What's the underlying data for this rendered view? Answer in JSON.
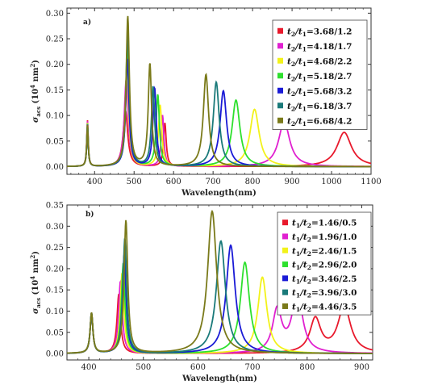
{
  "chart_data": [
    {
      "type": "line",
      "panel": "a)",
      "xlabel": "Wavelength(nm)",
      "ylabel": "σ_acs (10^4 nm^2)",
      "xlim": [
        330,
        1100
      ],
      "ylim": [
        -0.015,
        0.31
      ],
      "xticks": [
        "400",
        "500",
        "600",
        "700",
        "800",
        "900",
        "1000",
        "1100"
      ],
      "xtick_values": [
        400,
        500,
        600,
        700,
        800,
        900,
        1000,
        1100
      ],
      "yticks": [
        "0.00",
        "0.05",
        "0.10",
        "0.15",
        "0.20",
        "0.25",
        "0.30"
      ],
      "ytick_values": [
        0,
        0.05,
        0.1,
        0.15,
        0.2,
        0.25,
        0.3
      ],
      "legend_position": "top-right",
      "series": [
        {
          "name": "t2/t1=3.68/1.2",
          "label_html": [
            "t",
            "2",
            "/t",
            "1",
            "=3.68/1.2"
          ],
          "color": "#e8192c",
          "peaks": [
            [
              382,
              0.09,
              2.2
            ],
            [
              478,
              0.11,
              7
            ],
            [
              578,
              0.085,
              4
            ],
            [
              1032,
              0.067,
              22
            ]
          ]
        },
        {
          "name": "t2/t1=4.18/1.7",
          "label_html": [
            "t",
            "2",
            "/t",
            "1",
            "=4.18/1.7"
          ],
          "color": "#e020d0",
          "peaks": [
            [
              382,
              0.088,
              2.2
            ],
            [
              480,
              0.17,
              6
            ],
            [
              572,
              0.1,
              4
            ],
            [
              880,
              0.088,
              17
            ]
          ]
        },
        {
          "name": "t2/t1=4.68/2.2",
          "label_html": [
            "t",
            "2",
            "/t",
            "1",
            "=4.68/2.2"
          ],
          "color": "#f2f21a",
          "peaks": [
            [
              382,
              0.085,
              2.2
            ],
            [
              482,
              0.2,
              5
            ],
            [
              566,
              0.12,
              5
            ],
            [
              805,
              0.112,
              14
            ]
          ]
        },
        {
          "name": "t2/t1=5.18/2.7",
          "label_html": [
            "t",
            "2",
            "/t",
            "1",
            "=5.18/2.7"
          ],
          "color": "#2ee02e",
          "peaks": [
            [
              382,
              0.083,
              2.2
            ],
            [
              483,
              0.24,
              5
            ],
            [
              560,
              0.14,
              5
            ],
            [
              758,
              0.13,
              12
            ]
          ]
        },
        {
          "name": "t2/t1=5.68/3.2",
          "label_html": [
            "t",
            "2",
            "/t",
            "1",
            "=5.68/3.2"
          ],
          "color": "#1a1ad6",
          "peaks": [
            [
              382,
              0.081,
              2.2
            ],
            [
              483,
              0.21,
              5
            ],
            [
              552,
              0.153,
              5
            ],
            [
              726,
              0.148,
              10
            ]
          ]
        },
        {
          "name": "t2/t1=6.18/3.7",
          "label_html": [
            "t",
            "2",
            "/t",
            "1",
            "=6.18/3.7"
          ],
          "color": "#1a7a7a",
          "peaks": [
            [
              382,
              0.08,
              2.2
            ],
            [
              484,
              0.26,
              5
            ],
            [
              548,
              0.155,
              5
            ],
            [
              708,
              0.165,
              9
            ]
          ]
        },
        {
          "name": "t2/t1=6.68/4.2",
          "label_html": [
            "t",
            "2",
            "/t",
            "1",
            "=6.68/4.2"
          ],
          "color": "#7a7a1a",
          "peaks": [
            [
              382,
              0.08,
              2.2
            ],
            [
              484,
              0.293,
              5
            ],
            [
              540,
              0.2,
              5
            ],
            [
              682,
              0.18,
              8
            ]
          ]
        }
      ]
    },
    {
      "type": "line",
      "panel": "b)",
      "xlabel": "Wavelength(nm)",
      "ylabel": "σ_acs (10^4 nm^2)",
      "xlim": [
        360,
        920
      ],
      "ylim": [
        -0.015,
        0.35
      ],
      "xticks": [
        "400",
        "500",
        "600",
        "700",
        "800",
        "900"
      ],
      "xtick_values": [
        400,
        500,
        600,
        700,
        800,
        900
      ],
      "yticks": [
        "0.00",
        "0.05",
        "0.10",
        "0.15",
        "0.20",
        "0.25",
        "0.30",
        "0.35"
      ],
      "ytick_values": [
        0,
        0.05,
        0.1,
        0.15,
        0.2,
        0.25,
        0.3,
        0.35
      ],
      "legend_position": "top-right",
      "series": [
        {
          "name": "t1/t2=1.46/0.5",
          "label_html": [
            "t",
            "1",
            "/t",
            "2",
            "=1.46/0.5"
          ],
          "color": "#e8192c",
          "peaks": [
            [
              405,
              0.095,
              3
            ],
            [
              455,
              0.14,
              4
            ],
            [
              815,
              0.08,
              12
            ],
            [
              868,
              0.11,
              14
            ]
          ]
        },
        {
          "name": "t1/t2=1.96/1.0",
          "label_html": [
            "t",
            "1",
            "/t",
            "2",
            "=1.96/1.0"
          ],
          "color": "#e020d0",
          "peaks": [
            [
              405,
              0.095,
              3
            ],
            [
              458,
              0.17,
              4
            ],
            [
              745,
              0.1,
              10
            ],
            [
              782,
              0.145,
              11
            ]
          ]
        },
        {
          "name": "t1/t2=2.46/1.5",
          "label_html": [
            "t",
            "1",
            "/t",
            "2",
            "=2.46/1.5"
          ],
          "color": "#f2f21a",
          "peaks": [
            [
              405,
              0.095,
              3
            ],
            [
              461,
              0.19,
              4
            ],
            [
              718,
              0.18,
              10
            ]
          ]
        },
        {
          "name": "t1/t2=2.96/2.0",
          "label_html": [
            "t",
            "1",
            "/t",
            "2",
            "=2.96/2.0"
          ],
          "color": "#2ee02e",
          "peaks": [
            [
              405,
              0.095,
              3
            ],
            [
              463,
              0.21,
              4
            ],
            [
              686,
              0.215,
              10
            ]
          ]
        },
        {
          "name": "t1/t2=3.46/2.5",
          "label_html": [
            "t",
            "1",
            "/t",
            "2",
            "=3.46/2.5"
          ],
          "color": "#1a1ad6",
          "peaks": [
            [
              405,
              0.095,
              3
            ],
            [
              465,
              0.235,
              4
            ],
            [
              660,
              0.255,
              10
            ]
          ]
        },
        {
          "name": "t1/t2=3.96/3.0",
          "label_html": [
            "t",
            "1",
            "/t",
            "2",
            "=3.96/3.0"
          ],
          "color": "#1a7a7a",
          "peaks": [
            [
              405,
              0.095,
              3
            ],
            [
              466,
              0.27,
              4
            ],
            [
              642,
              0.265,
              10
            ]
          ]
        },
        {
          "name": "t1/t2=4.46/3.5",
          "label_html": [
            "t",
            "1",
            "/t",
            "2",
            "=4.46/3.5"
          ],
          "color": "#7a7a1a",
          "peaks": [
            [
              405,
              0.095,
              3
            ],
            [
              468,
              0.313,
              4
            ],
            [
              626,
              0.335,
              10
            ]
          ]
        }
      ]
    }
  ]
}
